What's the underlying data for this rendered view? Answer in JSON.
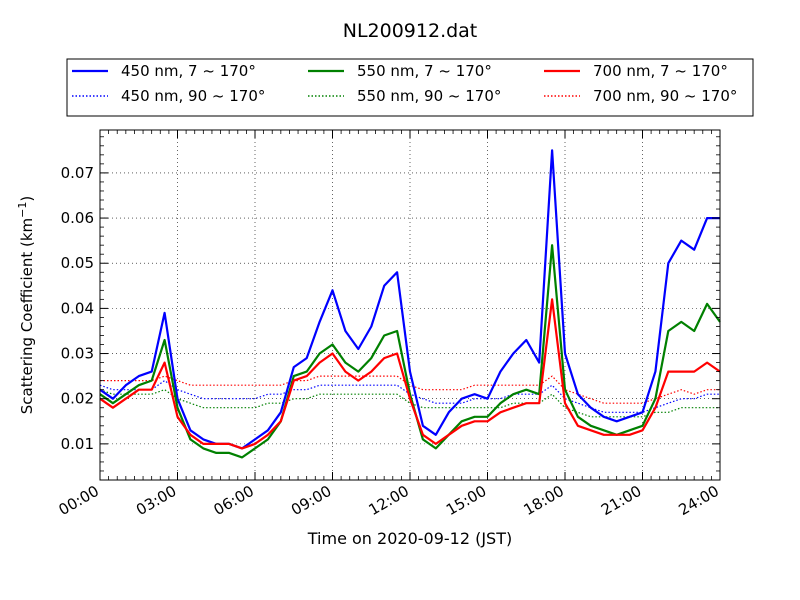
{
  "chart_data": {
    "type": "line",
    "title": "NL200912.dat",
    "xlabel": "Time on 2020-09-12 (JST)",
    "ylabel": "Scattering Coefficient (km",
    "ylabel_sup": "−1",
    "ylabel_close": ")",
    "xlim": [
      "00:00",
      "24:00"
    ],
    "ylim": [
      0.002,
      0.0795
    ],
    "grid": true,
    "legend_position": "top",
    "x_ticks": [
      "00:00",
      "03:00",
      "06:00",
      "09:00",
      "12:00",
      "15:00",
      "18:00",
      "21:00",
      "24:00"
    ],
    "y_ticks": [
      "0.01",
      "0.02",
      "0.03",
      "0.04",
      "0.05",
      "0.06",
      "0.07"
    ],
    "x_hours": [
      0,
      0.5,
      1,
      1.5,
      2,
      2.5,
      3,
      3.5,
      4,
      4.5,
      5,
      5.5,
      6,
      6.5,
      7,
      7.5,
      8,
      8.5,
      9,
      9.5,
      10,
      10.5,
      11,
      11.5,
      12,
      12.5,
      13,
      13.5,
      14,
      14.5,
      15,
      15.5,
      16,
      16.5,
      17,
      17.5,
      18,
      18.5,
      19,
      19.5,
      20,
      20.5,
      21,
      21.5,
      22,
      22.5,
      23,
      23.5,
      24
    ],
    "series": [
      {
        "name": "450 nm, 7 ~ 170°",
        "color": "#0000ff",
        "style": "solid",
        "values": [
          0.022,
          0.02,
          0.023,
          0.025,
          0.026,
          0.039,
          0.02,
          0.013,
          0.011,
          0.01,
          0.01,
          0.009,
          0.011,
          0.013,
          0.017,
          0.027,
          0.029,
          0.037,
          0.044,
          0.035,
          0.031,
          0.036,
          0.045,
          0.048,
          0.026,
          0.014,
          0.012,
          0.017,
          0.02,
          0.021,
          0.02,
          0.026,
          0.03,
          0.033,
          0.028,
          0.075,
          0.03,
          0.021,
          0.018,
          0.016,
          0.015,
          0.016,
          0.017,
          0.026,
          0.05,
          0.055,
          0.053,
          0.06,
          0.06
        ]
      },
      {
        "name": "450 nm, 90 ~ 170°",
        "color": "#0000ff",
        "style": "dotted",
        "values": [
          0.023,
          0.022,
          0.022,
          0.022,
          0.022,
          0.024,
          0.022,
          0.021,
          0.02,
          0.02,
          0.02,
          0.02,
          0.02,
          0.021,
          0.021,
          0.022,
          0.022,
          0.023,
          0.023,
          0.023,
          0.023,
          0.023,
          0.023,
          0.023,
          0.021,
          0.02,
          0.019,
          0.019,
          0.019,
          0.02,
          0.02,
          0.02,
          0.021,
          0.021,
          0.021,
          0.023,
          0.02,
          0.019,
          0.018,
          0.017,
          0.017,
          0.017,
          0.017,
          0.018,
          0.019,
          0.02,
          0.02,
          0.021,
          0.021
        ]
      },
      {
        "name": "550 nm, 7 ~ 170°",
        "color": "#008000",
        "style": "solid",
        "values": [
          0.021,
          0.019,
          0.021,
          0.023,
          0.024,
          0.033,
          0.018,
          0.011,
          0.009,
          0.008,
          0.008,
          0.007,
          0.009,
          0.011,
          0.015,
          0.025,
          0.026,
          0.03,
          0.032,
          0.028,
          0.026,
          0.029,
          0.034,
          0.035,
          0.021,
          0.011,
          0.009,
          0.012,
          0.015,
          0.016,
          0.016,
          0.019,
          0.021,
          0.022,
          0.021,
          0.054,
          0.022,
          0.016,
          0.014,
          0.013,
          0.012,
          0.013,
          0.014,
          0.02,
          0.035,
          0.037,
          0.035,
          0.041,
          0.037
        ]
      },
      {
        "name": "550 nm, 90 ~ 170°",
        "color": "#008000",
        "style": "dotted",
        "values": [
          0.022,
          0.021,
          0.021,
          0.021,
          0.021,
          0.022,
          0.02,
          0.019,
          0.018,
          0.018,
          0.018,
          0.018,
          0.018,
          0.019,
          0.019,
          0.02,
          0.02,
          0.021,
          0.021,
          0.021,
          0.021,
          0.021,
          0.021,
          0.021,
          0.019,
          0.018,
          0.018,
          0.018,
          0.018,
          0.018,
          0.018,
          0.018,
          0.019,
          0.019,
          0.019,
          0.021,
          0.018,
          0.017,
          0.016,
          0.016,
          0.016,
          0.016,
          0.016,
          0.017,
          0.017,
          0.018,
          0.018,
          0.018,
          0.018
        ]
      },
      {
        "name": "700 nm, 7 ~ 170°",
        "color": "#ff0000",
        "style": "solid",
        "values": [
          0.02,
          0.018,
          0.02,
          0.022,
          0.022,
          0.028,
          0.016,
          0.012,
          0.01,
          0.01,
          0.01,
          0.009,
          0.01,
          0.012,
          0.015,
          0.024,
          0.025,
          0.028,
          0.03,
          0.026,
          0.024,
          0.026,
          0.029,
          0.03,
          0.02,
          0.012,
          0.01,
          0.012,
          0.014,
          0.015,
          0.015,
          0.017,
          0.018,
          0.019,
          0.019,
          0.042,
          0.019,
          0.014,
          0.013,
          0.012,
          0.012,
          0.012,
          0.013,
          0.018,
          0.026,
          0.026,
          0.026,
          0.028,
          0.026
        ]
      },
      {
        "name": "700 nm, 90 ~ 170°",
        "color": "#ff0000",
        "style": "dotted",
        "values": [
          0.024,
          0.024,
          0.024,
          0.024,
          0.024,
          0.025,
          0.024,
          0.023,
          0.023,
          0.023,
          0.023,
          0.023,
          0.023,
          0.023,
          0.023,
          0.024,
          0.024,
          0.025,
          0.025,
          0.025,
          0.025,
          0.025,
          0.025,
          0.025,
          0.023,
          0.022,
          0.022,
          0.022,
          0.022,
          0.023,
          0.023,
          0.023,
          0.023,
          0.023,
          0.023,
          0.025,
          0.022,
          0.021,
          0.02,
          0.019,
          0.019,
          0.019,
          0.019,
          0.02,
          0.021,
          0.022,
          0.021,
          0.022,
          0.022
        ]
      }
    ]
  }
}
